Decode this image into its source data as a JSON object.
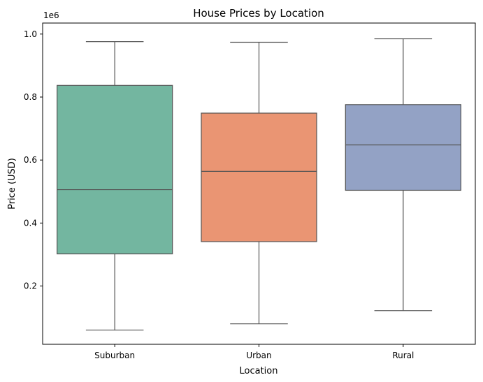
{
  "chart_data": {
    "type": "box",
    "title": "House Prices by Location",
    "xlabel": "Location",
    "ylabel": "Price (USD)",
    "y_offset_label": "1e6",
    "ylim": [
      0.015,
      1.035
    ],
    "yticks": [
      {
        "value": 0.2,
        "label": "0.2"
      },
      {
        "value": 0.4,
        "label": "0.4"
      },
      {
        "value": 0.6,
        "label": "0.6"
      },
      {
        "value": 0.8,
        "label": "0.8"
      },
      {
        "value": 1.0,
        "label": "1.0"
      }
    ],
    "grid": false,
    "legend": "none",
    "categories": [
      "Suburban",
      "Urban",
      "Rural"
    ],
    "boxes": [
      {
        "category": "Suburban",
        "whisker_low": 0.06,
        "q1": 0.302,
        "median": 0.506,
        "q3": 0.837,
        "whisker_high": 0.976,
        "color": "#73b6a0"
      },
      {
        "category": "Urban",
        "whisker_low": 0.08,
        "q1": 0.341,
        "median": 0.564,
        "q3": 0.749,
        "whisker_high": 0.974,
        "color": "#ea9573"
      },
      {
        "category": "Rural",
        "whisker_low": 0.122,
        "q1": 0.504,
        "median": 0.648,
        "q3": 0.776,
        "whisker_high": 0.985,
        "color": "#93a2c5"
      }
    ],
    "line_color": "#545454"
  }
}
